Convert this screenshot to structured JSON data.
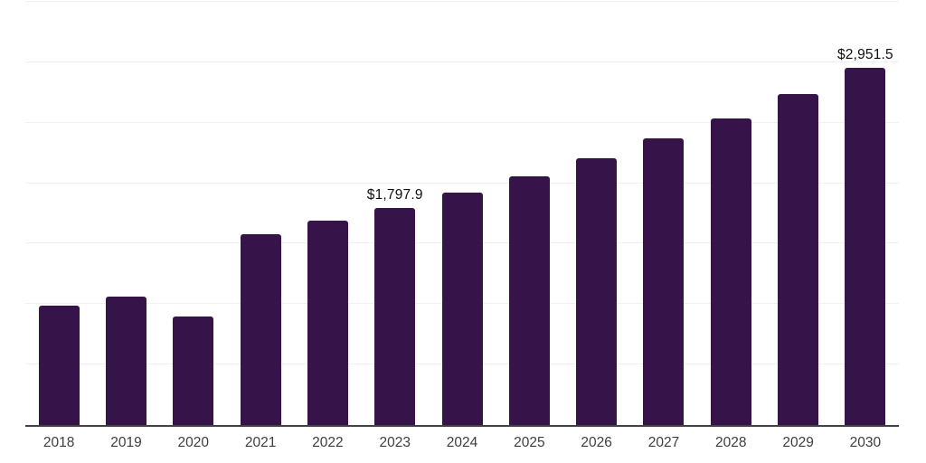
{
  "chart_data": {
    "type": "bar",
    "title": "",
    "xlabel": "",
    "ylabel": "",
    "categories": [
      "2018",
      "2019",
      "2020",
      "2021",
      "2022",
      "2023",
      "2024",
      "2025",
      "2026",
      "2027",
      "2028",
      "2029",
      "2030"
    ],
    "values": [
      990,
      1060,
      900,
      1575,
      1688,
      1797.9,
      1925,
      2060,
      2210,
      2372,
      2536,
      2740,
      2951.5
    ],
    "data_labels": [
      "",
      "",
      "",
      "",
      "",
      "$1,797.9",
      "",
      "",
      "",
      "",
      "",
      "",
      "$2,951.5"
    ],
    "ylim": [
      0,
      3500
    ],
    "gridline_step": 500,
    "grid": true,
    "legend_position": "none",
    "y_axis_tick_labels_visible": false,
    "styles": {
      "bar_color": "#361349",
      "grid_color": "#f0f0f2",
      "axis_color": "#424242",
      "tick_label_color": "#3e3e3e",
      "data_label_color": "#101010",
      "background": "#ffffff"
    }
  }
}
